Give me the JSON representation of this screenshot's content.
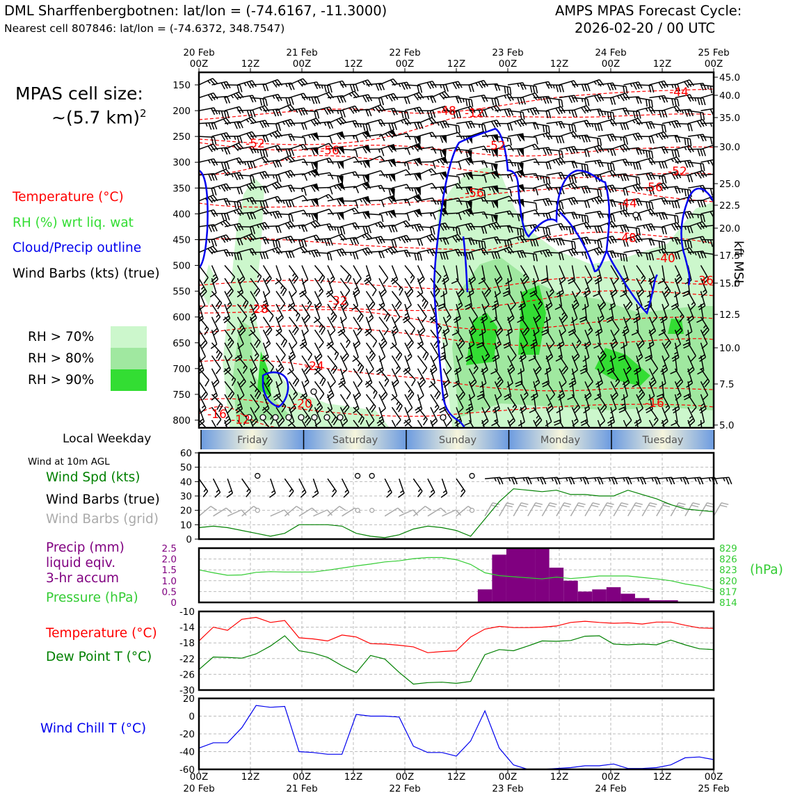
{
  "header": {
    "site_line": "DML Sharffenbergbotnen: lat/lon = (-74.6167, -11.3000)",
    "cell_line": "Nearest cell 807846: lat/lon = (-74.6372, 348.7547)",
    "cycle_line1": "AMPS MPAS Forecast Cycle:",
    "cycle_line2": "2026-02-20 / 00 UTC"
  },
  "legend": {
    "cell_size_label": "MPAS cell size:",
    "cell_size_value": "~(5.7 km)",
    "cell_size_exp": "2",
    "temperature": "Temperature (°C)",
    "rh": "RH (%) wrt liq. wat",
    "cloud": "Cloud/Precip outline",
    "barbs": "Wind Barbs (kts) (true)",
    "rh70": "RH > 70%",
    "rh80": "RH > 80%",
    "rh90": "RH > 90%",
    "local_weekday": "Local Weekday",
    "wind10m": "Wind at 10m AGL",
    "wind_spd": "Wind Spd (kts)",
    "wind_barbs_true": "Wind Barbs (true)",
    "wind_barbs_grid": "Wind Barbs (grid)",
    "precip_l1": "Precip (mm)",
    "precip_l2": "liquid eqiv.",
    "precip_l3": "3-hr accum",
    "pressure": "Pressure (hPa)",
    "temp2": "Temperature (°C)",
    "dewpt": "Dew Point T (°C)",
    "windchill": "Wind Chill T (°C)",
    "kft_label": "kft MSL",
    "hpa_label": "(hPa)"
  },
  "colors": {
    "temp": "#ff0000",
    "rh": "#33dd33",
    "cloud": "#0000ee",
    "barb": "#000000",
    "dew": "#008000",
    "precip": "#800080",
    "windchill": "#0000ee",
    "rh70": "#ccf7cc",
    "rh80": "#a0e8a0",
    "rh90": "#33dd33",
    "grid_barb": "#aaaaaa"
  },
  "chart_data": {
    "type": "line",
    "time_ticks": [
      "00Z",
      "12Z",
      "00Z",
      "12Z",
      "00Z",
      "12Z",
      "00Z",
      "12Z",
      "00Z",
      "12Z",
      "00Z"
    ],
    "date_labels": [
      "20 Feb",
      "21 Feb",
      "22 Feb",
      "23 Feb",
      "24 Feb",
      "25 Feb"
    ],
    "weekdays": [
      "Friday",
      "Saturday",
      "Sunday",
      "Monday",
      "Tuesday"
    ],
    "cross_section": {
      "pressure_ticks": [
        150,
        200,
        250,
        300,
        350,
        400,
        450,
        500,
        550,
        600,
        650,
        700,
        750,
        800
      ],
      "kft_ticks": [
        "45.0",
        "40.0",
        "35.0",
        "30.0",
        "25.0",
        "22.5",
        "20.0",
        "17.5",
        "15.0",
        "12.5",
        "10.0",
        "7.5",
        "5.0"
      ],
      "temp_labels": [
        "-44",
        "-48",
        "-52",
        "-56",
        "-52",
        "-52",
        "-56",
        "-56",
        "-44",
        "-48",
        "-40",
        "-36",
        "-32",
        "-28",
        "-24",
        "-20",
        "-16",
        "-16",
        "-12",
        "-12"
      ]
    },
    "wind_speed": {
      "ylim": [
        0,
        60
      ],
      "yticks": [
        0,
        10,
        20,
        30,
        40,
        50,
        60
      ],
      "values": [
        8,
        9,
        8,
        6,
        4,
        2,
        4,
        10,
        10,
        10,
        9,
        4,
        2,
        1,
        3,
        7,
        9,
        8,
        6,
        2,
        14,
        26,
        35,
        34,
        33,
        34,
        31,
        31,
        30,
        30,
        34,
        31,
        28,
        24,
        21,
        20,
        19
      ]
    },
    "precip": {
      "ylim": [
        0,
        2.5
      ],
      "yticks": [
        "0",
        "0.5",
        "1.0",
        "1.5",
        "2.0",
        "2.5"
      ],
      "bars": [
        0,
        0,
        0,
        0,
        0,
        0,
        0,
        0,
        0,
        0,
        0,
        0,
        0,
        0,
        0,
        0,
        0,
        0,
        0,
        0,
        0.6,
        2.2,
        2.5,
        2.5,
        2.5,
        1.6,
        1.0,
        0.5,
        0.6,
        0.7,
        0.4,
        0.2,
        0.1,
        0.1,
        0,
        0,
        0
      ]
    },
    "pressure": {
      "yticks": [
        "814",
        "817",
        "820",
        "823",
        "826",
        "829"
      ],
      "ylim": [
        814,
        829
      ],
      "values": [
        823.0,
        822.2,
        821.5,
        821.6,
        822.3,
        822.5,
        822.4,
        822.4,
        822.4,
        822.9,
        823.5,
        824.1,
        824.6,
        825.2,
        825.5,
        826.1,
        826.4,
        826.4,
        825.8,
        824.5,
        822.2,
        821.4,
        821.1,
        820.8,
        820.5,
        821.0,
        820.6,
        820.9,
        821.3,
        821.3,
        821.3,
        820.9,
        820.5,
        820.0,
        819.1,
        818.5,
        817.5
      ]
    },
    "temperature": {
      "ylim": [
        -30,
        -10
      ],
      "yticks": [
        -10,
        -14,
        -18,
        -22,
        -26,
        -30
      ],
      "values": [
        -17.5,
        -14.0,
        -14.8,
        -12.0,
        -11.5,
        -12.8,
        -12.3,
        -16.7,
        -17.0,
        -17.5,
        -16.0,
        -16.5,
        -18.2,
        -18.3,
        -18.6,
        -19.0,
        -20.5,
        -20.2,
        -20.0,
        -16.5,
        -14.5,
        -13.8,
        -14.1,
        -14.1,
        -14.0,
        -13.7,
        -12.8,
        -12.5,
        -12.8,
        -13.0,
        -12.9,
        -13.2,
        -12.7,
        -12.7,
        -13.5,
        -14.2,
        -14.3
      ]
    },
    "dewpoint": {
      "values": [
        -24.8,
        -21.6,
        -21.7,
        -21.9,
        -20.8,
        -18.8,
        -16.2,
        -20.0,
        -20.6,
        -21.7,
        -23.8,
        -25.6,
        -21.2,
        -22.1,
        -25.5,
        -28.5,
        -28.1,
        -28.0,
        -28.3,
        -27.8,
        -21.0,
        -19.7,
        -20.0,
        -18.8,
        -17.5,
        -17.6,
        -17.4,
        -16.3,
        -16.2,
        -18.3,
        -18.5,
        -18.3,
        -18.5,
        -17.3,
        -18.5,
        -19.5,
        -19.7
      ]
    },
    "wind_chill": {
      "ylim": [
        -60,
        20
      ],
      "yticks": [
        20,
        0,
        -20,
        -40,
        -60
      ],
      "values": [
        -36,
        -30,
        -30,
        -13,
        12,
        10,
        11,
        -40,
        -41,
        -43,
        -43,
        2,
        0,
        0,
        -1,
        -34,
        -41,
        -41,
        -45,
        -28,
        6,
        -36,
        -55,
        -60,
        -60,
        -59,
        -58,
        -56,
        -56,
        -54,
        -59,
        -59,
        -58,
        -55,
        -47,
        -46,
        -49
      ]
    }
  }
}
